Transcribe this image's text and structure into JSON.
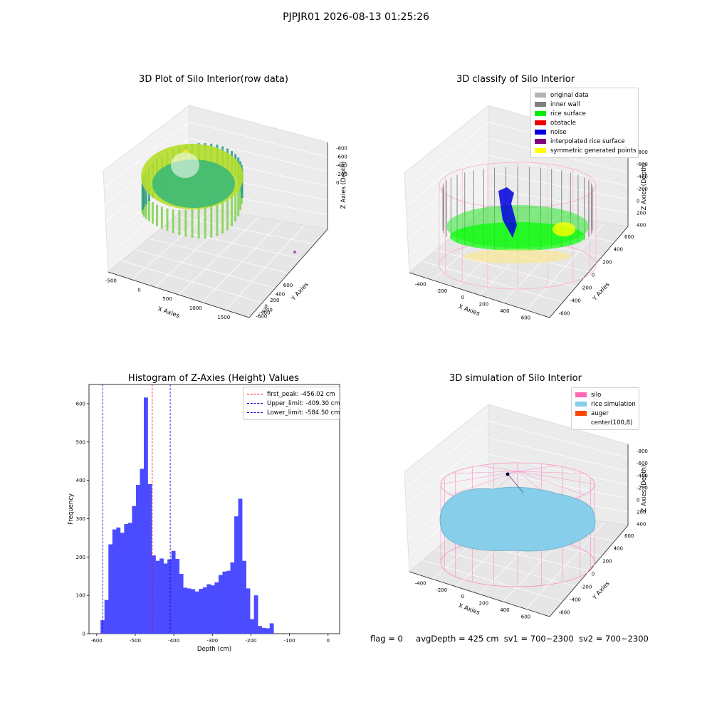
{
  "suptitle": "PJPJR01 2026-08-13 01:25:26",
  "panel1": {
    "title": "3D Plot of Silo Interior(row data)",
    "xlabel": "X Axies",
    "ylabel": "Y Axies",
    "zlabel": "Z Axies (Depth)",
    "xticks": [
      "-500",
      "0",
      "500",
      "1000",
      "1500"
    ],
    "yticks": [
      "600",
      "400",
      "200",
      "0",
      "-200",
      "-400",
      "-600"
    ],
    "zticks": [
      "0",
      "-200",
      "-400",
      "-600",
      "-800"
    ]
  },
  "panel2": {
    "title": "3D classify of Silo Interior",
    "xlabel": "X Axies",
    "ylabel": "Y Axies",
    "zlabel": "Z Axies (Depth)",
    "xticks": [
      "-400",
      "-200",
      "0",
      "200",
      "400",
      "600"
    ],
    "yticks": [
      "600",
      "400",
      "200",
      "0",
      "-200",
      "-400",
      "-600"
    ],
    "zticks": [
      "400",
      "200",
      "0",
      "-200",
      "-400",
      "-600",
      "-800"
    ],
    "legend": [
      {
        "label": "original data",
        "color": "#b4b4b4"
      },
      {
        "label": "inner wall",
        "color": "#808080"
      },
      {
        "label": "rice surface",
        "color": "#00ee00"
      },
      {
        "label": "obstacle",
        "color": "#ee0000"
      },
      {
        "label": "noise",
        "color": "#0000dd"
      },
      {
        "label": "interpolated rice surface",
        "color": "#800080"
      },
      {
        "label": "symmetric generated points",
        "color": "#ffff00"
      }
    ]
  },
  "panel4": {
    "title": "3D simulation of Silo Interior",
    "xlabel": "X Axies",
    "ylabel": "Y Axies",
    "zlabel": "Z Axies (Depth)",
    "xticks": [
      "-400",
      "-200",
      "0",
      "200",
      "400",
      "600"
    ],
    "yticks": [
      "600",
      "400",
      "200",
      "0",
      "-200",
      "-400",
      "-600"
    ],
    "zticks": [
      "400",
      "200",
      "0",
      "-200",
      "-400",
      "-600",
      "-800"
    ],
    "legend": [
      {
        "label": "silo",
        "color": "#ff69b4"
      },
      {
        "label": "rice simulation",
        "color": "#87ceeb"
      },
      {
        "label": "auger",
        "color": "#ff4500"
      },
      {
        "label": "center(100,8)",
        "color": ""
      }
    ]
  },
  "chart_data": {
    "type": "bar",
    "title": "Histogram of Z-Axies (Height) Values",
    "xlabel": "Depth (cm)",
    "ylabel": "Frequency",
    "xlim": [
      -620,
      30
    ],
    "ylim": [
      0,
      650
    ],
    "xticks": [
      -600,
      -500,
      -400,
      -300,
      -200,
      -100,
      0
    ],
    "yticks": [
      0,
      100,
      200,
      300,
      400,
      500,
      600
    ],
    "bin_width": 10.2,
    "bin_start": -590,
    "color": "#4b4bff",
    "values": [
      35,
      88,
      233,
      272,
      277,
      263,
      286,
      289,
      333,
      388,
      430,
      616,
      390,
      204,
      190,
      196,
      183,
      194,
      216,
      195,
      156,
      120,
      118,
      116,
      110,
      117,
      121,
      129,
      126,
      134,
      153,
      162,
      164,
      186,
      306,
      352,
      190,
      118,
      38,
      100,
      20,
      15,
      14,
      27
    ],
    "vlines": [
      {
        "label": "first_peak: -456.02 cm",
        "x": -456.02,
        "color": "#ff0000"
      },
      {
        "label": "Upper_limit: -409.30 cm",
        "x": -409.3,
        "color": "#0000cc"
      },
      {
        "label": "Lower_limit: -584.50 cm",
        "x": -584.5,
        "color": "#0000cc"
      }
    ],
    "legend_position": "upper right"
  },
  "footer": {
    "flag": "flag = 0",
    "avg_depth": "avgDepth = 425 cm",
    "sv1": "sv1 = 700~2300",
    "sv2": "sv2 = 700~2300"
  }
}
